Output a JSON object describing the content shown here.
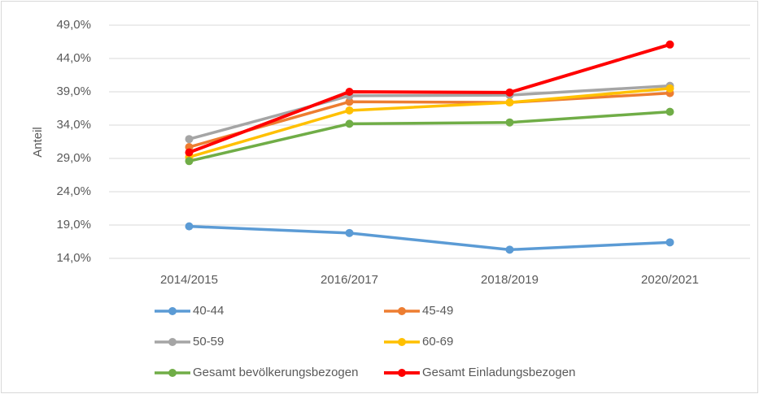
{
  "chart_data": {
    "type": "line",
    "y_label": "Anteil",
    "categories": [
      "2014/2015",
      "2016/2017",
      "2018/2019",
      "2020/2021"
    ],
    "series": [
      {
        "name": "40-44",
        "color": "#5b9bd5",
        "values": [
          18.8,
          17.8,
          15.3,
          16.4
        ]
      },
      {
        "name": "45-49",
        "color": "#ed7d31",
        "values": [
          30.7,
          37.5,
          37.4,
          38.8
        ]
      },
      {
        "name": "50-59",
        "color": "#a5a5a5",
        "values": [
          31.9,
          38.4,
          38.5,
          39.9
        ]
      },
      {
        "name": "60-69",
        "color": "#ffc000",
        "values": [
          29.2,
          36.2,
          37.4,
          39.5
        ]
      },
      {
        "name": "Gesamt bevölkerungsbezogen",
        "color": "#70ad47",
        "values": [
          28.6,
          34.2,
          34.4,
          36.0
        ]
      },
      {
        "name": "Gesamt Einladungsbezogen",
        "color": "#ff0000",
        "values": [
          29.9,
          39.0,
          38.9,
          46.1
        ]
      }
    ],
    "ylim": [
      14,
      49
    ],
    "yticks": [
      {
        "value": 14,
        "label": "14,0%"
      },
      {
        "value": 19,
        "label": "19,0%"
      },
      {
        "value": 24,
        "label": "24,0%"
      },
      {
        "value": 29,
        "label": "29,0%"
      },
      {
        "value": 34,
        "label": "34,0%"
      },
      {
        "value": 39,
        "label": "39,0%"
      },
      {
        "value": 44,
        "label": "44,0%"
      },
      {
        "value": 49,
        "label": "49,0%"
      }
    ],
    "grid": true,
    "legend": "bottom"
  }
}
